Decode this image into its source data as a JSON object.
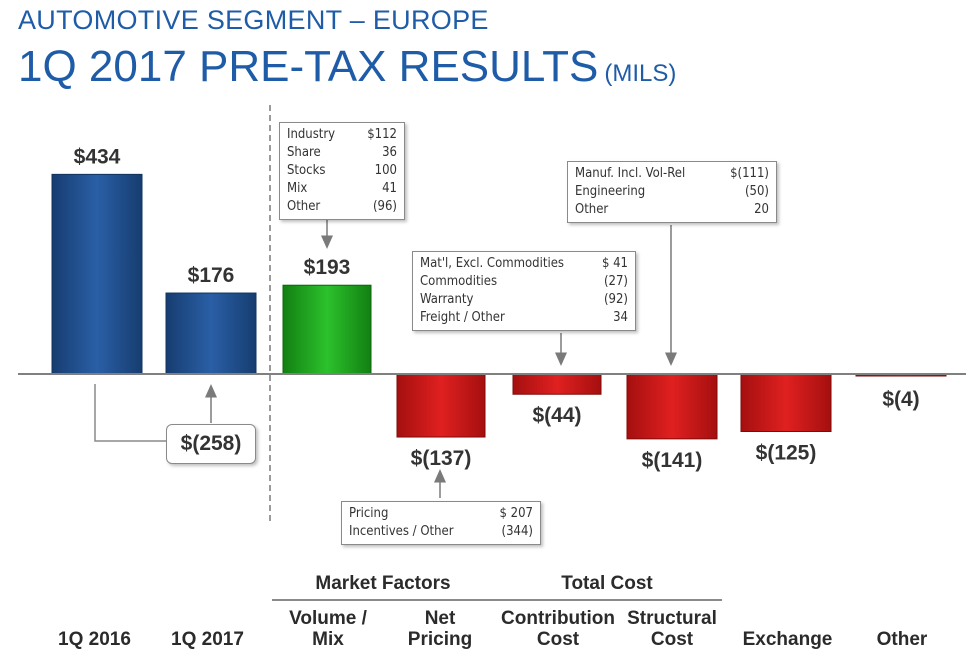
{
  "header": {
    "subtitle": "AUTOMOTIVE SEGMENT – EUROPE",
    "title": "1Q 2017 PRE-TAX RESULTS",
    "units": "(MILS)"
  },
  "colors": {
    "title": "#1f5ca8",
    "blue_bar": "#1e4f8f",
    "green_bar": "#1fa01f",
    "red_bar": "#c71414",
    "axis": "#808080"
  },
  "chart_data": {
    "type": "bar",
    "subtype": "waterfall",
    "title": "1Q 2017 PRE-TAX RESULTS (MILS)",
    "categories": [
      "1Q 2016",
      "1Q 2017",
      "Volume / Mix",
      "Net Pricing",
      "Contribution Cost",
      "Structural Cost",
      "Exchange",
      "Other"
    ],
    "values": [
      434,
      176,
      193,
      -137,
      -44,
      -141,
      -125,
      -4
    ],
    "value_labels": [
      "$434",
      "$176",
      "$193",
      "$(137)",
      "$(44)",
      "$(141)",
      "$(125)",
      "$(4)"
    ],
    "bar_colors": [
      "blue",
      "blue",
      "green",
      "red",
      "red",
      "red",
      "red",
      "red"
    ],
    "change_label": "$(258)",
    "groups": [
      {
        "label": "Market Factors",
        "categories": [
          "Volume / Mix",
          "Net Pricing"
        ]
      },
      {
        "label": "Total Cost",
        "categories": [
          "Contribution Cost",
          "Structural Cost"
        ]
      }
    ],
    "breakdowns": {
      "volume_mix": [
        {
          "label": "Industry",
          "value": "$112"
        },
        {
          "label": "Share",
          "value": "36"
        },
        {
          "label": "Stocks",
          "value": "100"
        },
        {
          "label": "Mix",
          "value": "41"
        },
        {
          "label": "Other",
          "value": "(96)"
        }
      ],
      "net_pricing": [
        {
          "label": "Pricing",
          "value": "$ 207"
        },
        {
          "label": "Incentives / Other",
          "value": "(344)"
        }
      ],
      "contribution_cost": [
        {
          "label": "Mat'l, Excl. Commodities",
          "value": "$ 41"
        },
        {
          "label": "Commodities",
          "value": "(27)"
        },
        {
          "label": "Warranty",
          "value": "(92)"
        },
        {
          "label": "Freight  / Other",
          "value": "34"
        }
      ],
      "structural_cost": [
        {
          "label": "Manuf. Incl. Vol-Rel",
          "value": "$(111)"
        },
        {
          "label": "Engineering",
          "value": "(50)"
        },
        {
          "label": "Other",
          "value": "20"
        }
      ]
    }
  }
}
